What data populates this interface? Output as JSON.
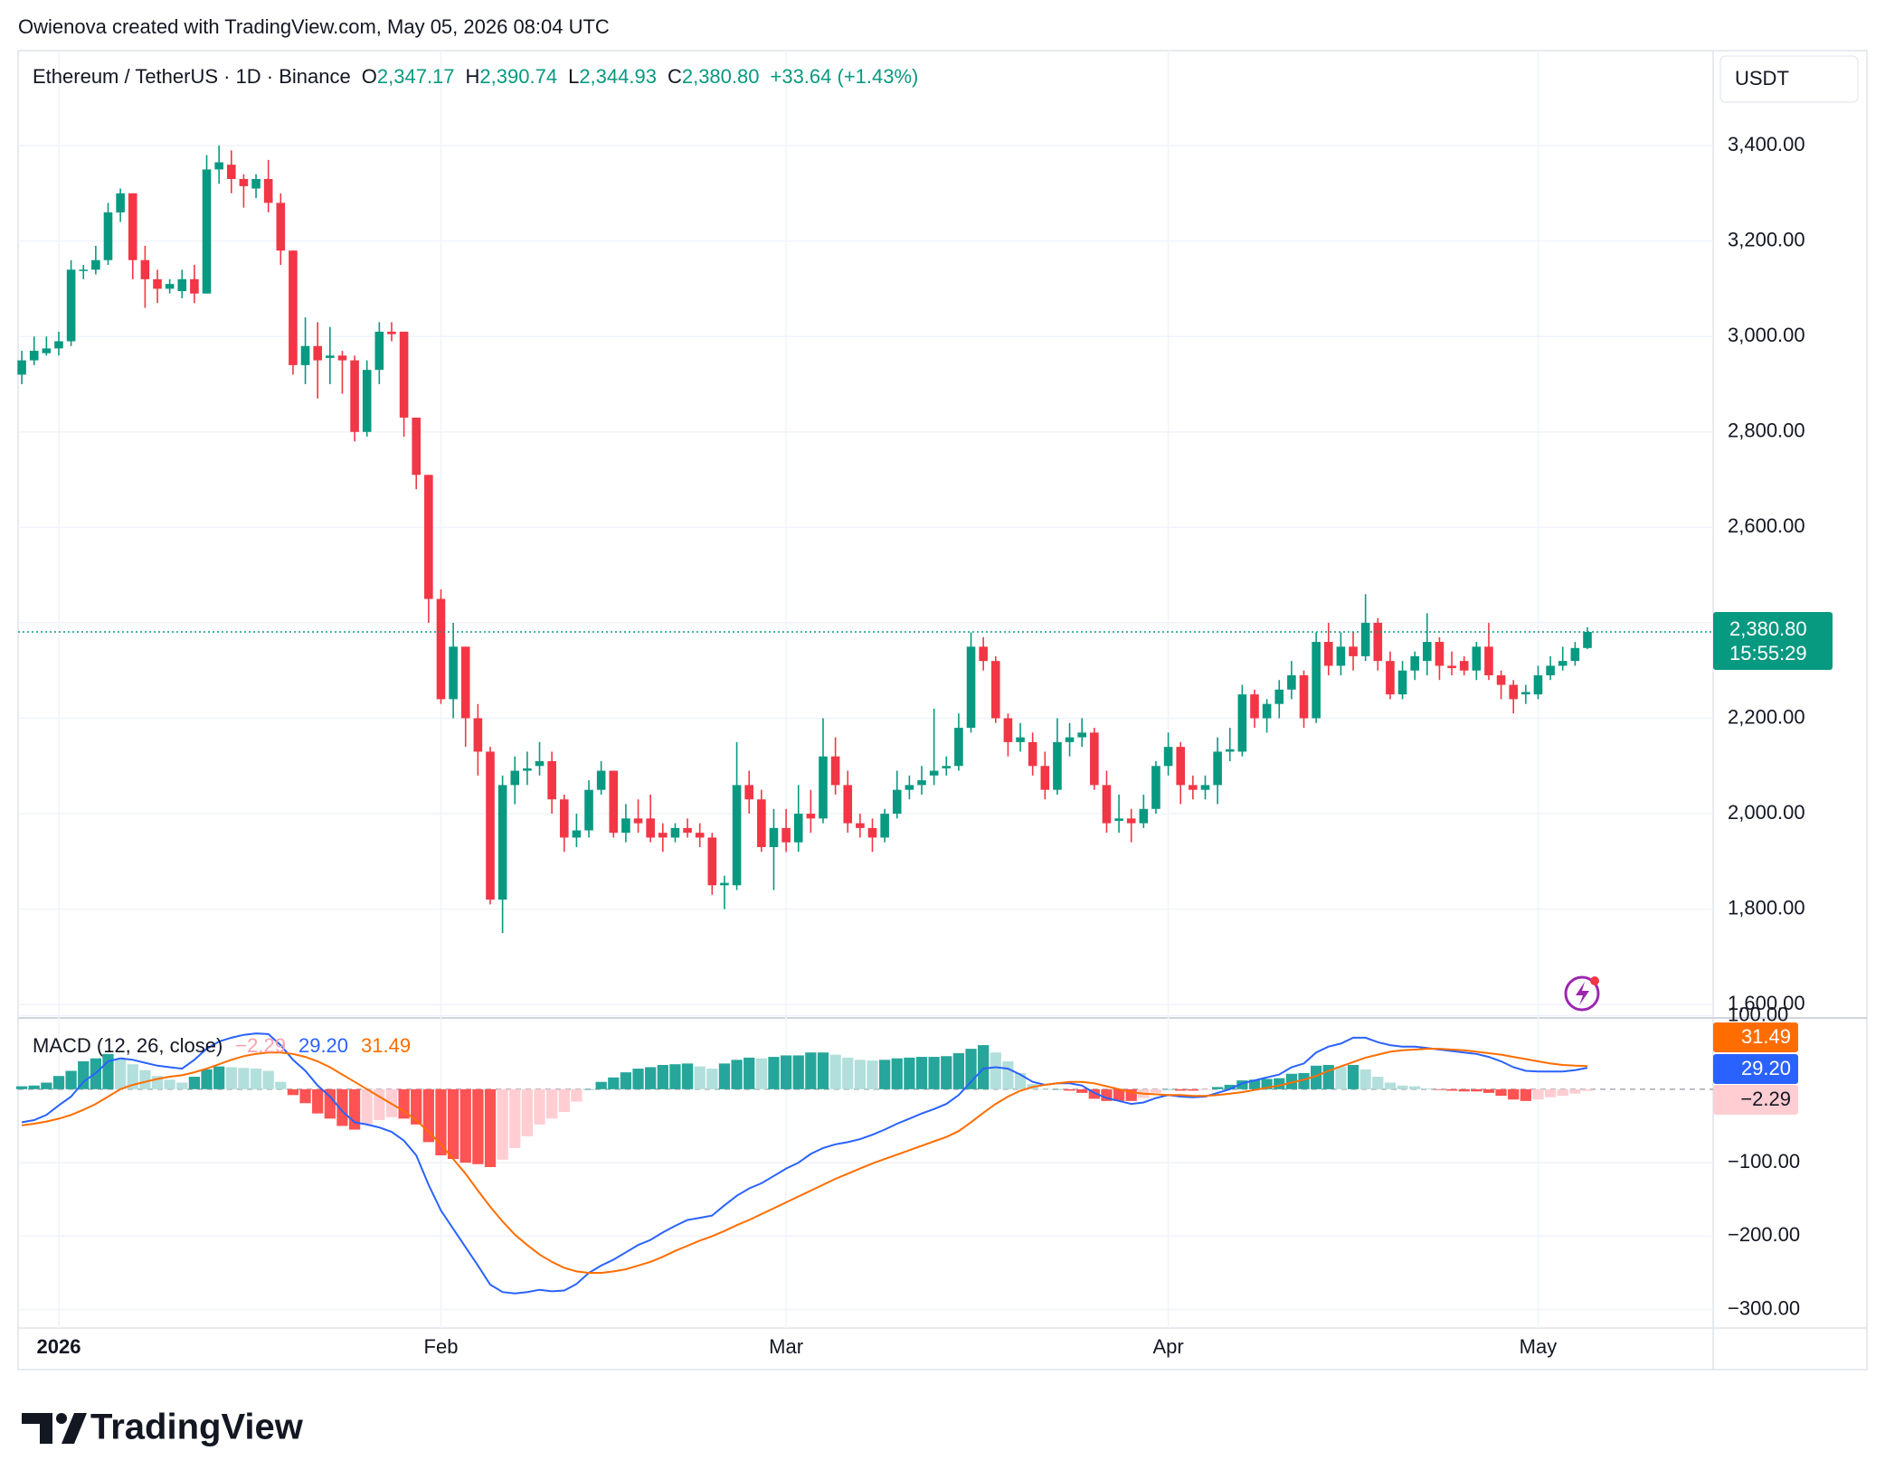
{
  "attribution": "Owienova created with TradingView.com, May 05, 2026 08:04 UTC",
  "logo": "TradingView",
  "chart_data": [
    {
      "type": "candlestick",
      "title": "Ethereum / TetherUS · 1D · Binance",
      "ohlc_header": [
        {
          "label": "O",
          "value": "2,347.17"
        },
        {
          "label": "H",
          "value": "2,390.74"
        },
        {
          "label": "L",
          "value": "2,344.93"
        },
        {
          "label": "C",
          "value": "2,380.80"
        }
      ],
      "change": "+33.64 (+1.43%)",
      "currency": "USDT",
      "last_price_label": "2,380.80",
      "countdown": "15:55:29",
      "up_color": "#089981",
      "down_color": "#f23645",
      "grid": true,
      "xlim": [
        -0.3,
        137.2
      ],
      "xticks": [
        {
          "value": 3,
          "label": "2026"
        },
        {
          "value": 34,
          "label": "Feb"
        },
        {
          "value": 62,
          "label": "Mar"
        },
        {
          "value": 93,
          "label": "Apr"
        },
        {
          "value": 123,
          "label": "May"
        }
      ],
      "ylim": [
        1572,
        3599
      ],
      "yticks": [
        {
          "value": 1600,
          "label": "1,600.00"
        },
        {
          "value": 1800,
          "label": "1,800.00"
        },
        {
          "value": 2000,
          "label": "2,000.00"
        },
        {
          "value": 2200,
          "label": "2,200.00"
        },
        {
          "value": 2400,
          "label": "2,400.00"
        },
        {
          "value": 2600,
          "label": "2,600.00"
        },
        {
          "value": 2800,
          "label": "2,800.00"
        },
        {
          "value": 3000,
          "label": "3,000.00"
        },
        {
          "value": 3200,
          "label": "3,200.00"
        },
        {
          "value": 3400,
          "label": "3,400.00"
        }
      ],
      "open": [
        2920,
        2950,
        2965,
        2975,
        2990,
        3140,
        3140,
        3160,
        3260,
        3300,
        3160,
        3120,
        3100,
        3095,
        3120,
        3090,
        3350,
        3360,
        3330,
        3310,
        3330,
        3280,
        3180,
        2940,
        2980,
        2955,
        2960,
        2950,
        2800,
        2930,
        3010,
        3010,
        2830,
        2710,
        2450,
        2240,
        2350,
        2200,
        2130,
        1820,
        2060,
        2090,
        2100,
        2110,
        2030,
        1950,
        1965,
        2050,
        2090,
        1960,
        1990,
        1990,
        1960,
        1950,
        1970,
        1960,
        1950,
        1850,
        1850,
        2060,
        2030,
        1930,
        1970,
        1940,
        2000,
        1990,
        2120,
        2060,
        1980,
        1970,
        1950,
        2000,
        2050,
        2060,
        2080,
        2095,
        2100,
        2180,
        2350,
        2320,
        2200,
        2150,
        2150,
        2100,
        2050,
        2150,
        2160,
        2170,
        2060,
        1985,
        1990,
        1980,
        2010,
        2100,
        2140,
        2060,
        2050,
        2060,
        2130,
        2130,
        2250,
        2200,
        2230,
        2260,
        2290,
        2200,
        2360,
        2310,
        2350,
        2330,
        2400,
        2320,
        2250,
        2300,
        2320,
        2360,
        2310,
        2320,
        2300,
        2350,
        2290,
        2270,
        2250,
        2250,
        2290,
        2310,
        2320,
        2347.17
      ],
      "high": [
        2970,
        3000,
        3000,
        3010,
        3160,
        3150,
        3190,
        3280,
        3310,
        3300,
        3190,
        3140,
        3120,
        3140,
        3150,
        3380,
        3400,
        3390,
        3340,
        3340,
        3370,
        3300,
        3180,
        3040,
        3030,
        3020,
        2970,
        2960,
        2950,
        3030,
        3030,
        3010,
        2830,
        2710,
        2470,
        2400,
        2350,
        2230,
        2140,
        2080,
        2120,
        2130,
        2150,
        2130,
        2040,
        2000,
        2070,
        2110,
        2090,
        2020,
        2030,
        2040,
        1980,
        1980,
        1990,
        1980,
        1960,
        1870,
        2150,
        2090,
        2050,
        2010,
        2010,
        2060,
        2050,
        2200,
        2160,
        2090,
        2000,
        1990,
        2010,
        2090,
        2080,
        2100,
        2220,
        2120,
        2210,
        2380,
        2370,
        2330,
        2210,
        2190,
        2170,
        2130,
        2200,
        2190,
        2200,
        2180,
        2090,
        2040,
        2010,
        2040,
        2110,
        2170,
        2150,
        2080,
        2080,
        2160,
        2180,
        2270,
        2260,
        2240,
        2280,
        2320,
        2300,
        2380,
        2400,
        2380,
        2380,
        2460,
        2410,
        2340,
        2320,
        2340,
        2420,
        2370,
        2340,
        2330,
        2360,
        2400,
        2300,
        2280,
        2270,
        2310,
        2330,
        2350,
        2360,
        2390.74
      ],
      "low": [
        2900,
        2940,
        2960,
        2960,
        2980,
        3120,
        3130,
        3150,
        3240,
        3120,
        3060,
        3070,
        3090,
        3080,
        3070,
        3090,
        3320,
        3300,
        3270,
        3290,
        3260,
        3150,
        2920,
        2900,
        2870,
        2900,
        2880,
        2780,
        2790,
        2900,
        2990,
        2790,
        2680,
        2400,
        2230,
        2200,
        2140,
        2080,
        1810,
        1750,
        2020,
        2060,
        2080,
        2000,
        1920,
        1930,
        1950,
        2040,
        1950,
        1940,
        1960,
        1940,
        1920,
        1940,
        1950,
        1930,
        1830,
        1800,
        1840,
        2000,
        1920,
        1840,
        1920,
        1920,
        1960,
        1980,
        2040,
        1960,
        1950,
        1920,
        1940,
        1990,
        2030,
        2040,
        2060,
        2080,
        2090,
        2170,
        2300,
        2190,
        2120,
        2130,
        2080,
        2030,
        2040,
        2120,
        2140,
        2050,
        1960,
        1960,
        1940,
        1970,
        2000,
        2080,
        2020,
        2030,
        2030,
        2020,
        2110,
        2120,
        2180,
        2170,
        2200,
        2240,
        2180,
        2190,
        2290,
        2290,
        2300,
        2320,
        2300,
        2240,
        2240,
        2280,
        2290,
        2280,
        2290,
        2290,
        2280,
        2280,
        2240,
        2210,
        2230,
        2240,
        2280,
        2300,
        2310,
        2344.93
      ],
      "close": [
        2950,
        2970,
        2975,
        2990,
        3140,
        3140,
        3160,
        3260,
        3300,
        3160,
        3120,
        3100,
        3110,
        3120,
        3090,
        3350,
        3365,
        3330,
        3315,
        3330,
        3280,
        3180,
        2940,
        2980,
        2950,
        2960,
        2950,
        2800,
        2930,
        3010,
        3005,
        2830,
        2710,
        2450,
        2240,
        2350,
        2200,
        2130,
        1820,
        2060,
        2090,
        2095,
        2110,
        2030,
        1950,
        1965,
        2050,
        2090,
        1960,
        1990,
        1980,
        1950,
        1950,
        1970,
        1960,
        1950,
        1850,
        1855,
        2060,
        2030,
        1930,
        1970,
        1940,
        2000,
        1990,
        2120,
        2060,
        1980,
        1970,
        1950,
        2000,
        2050,
        2060,
        2070,
        2090,
        2100,
        2180,
        2350,
        2320,
        2200,
        2150,
        2160,
        2100,
        2050,
        2150,
        2160,
        2170,
        2060,
        1980,
        1990,
        1980,
        2010,
        2100,
        2140,
        2060,
        2050,
        2060,
        2130,
        2135,
        2250,
        2200,
        2230,
        2260,
        2290,
        2200,
        2360,
        2310,
        2350,
        2330,
        2400,
        2320,
        2250,
        2300,
        2330,
        2360,
        2310,
        2305,
        2300,
        2350,
        2290,
        2270,
        2240,
        2255,
        2290,
        2310,
        2320,
        2347.17,
        2380.8
      ]
    },
    {
      "type": "macd",
      "label": "MACD (12, 26, close)",
      "ylim": [
        -325,
        97
      ],
      "yticks": [
        {
          "value": 100,
          "label": "100.00"
        },
        {
          "value": -100,
          "label": "−100.00"
        },
        {
          "value": -200,
          "label": "−200.00"
        },
        {
          "value": -300,
          "label": "−300.00"
        }
      ],
      "histogram": {
        "colors": {
          "rising_above": "#26a69a",
          "falling_above": "#b2dfdb",
          "falling_below": "#ff5252",
          "rising_below": "#ffcdd2"
        },
        "label_color": "#f7a1ab",
        "last_value_label": "−2.29",
        "values": [
          4,
          5,
          9,
          18,
          25,
          38,
          42,
          48,
          42,
          34,
          26,
          18,
          13,
          9,
          17,
          27,
          31,
          30,
          29,
          28,
          25,
          10,
          -8,
          -19,
          -33,
          -40,
          -50,
          -55,
          -48,
          -42,
          -38,
          -40,
          -48,
          -72,
          -90,
          -95,
          -100,
          -102,
          -106,
          -96,
          -80,
          -64,
          -48,
          -40,
          -31,
          -17,
          0,
          10,
          16,
          23,
          28,
          30,
          33,
          34,
          35,
          31,
          28,
          35,
          40,
          43,
          42,
          44,
          46,
          46,
          50,
          50,
          47,
          43,
          40,
          39,
          40,
          42,
          43,
          44,
          44,
          45,
          49,
          55,
          60,
          50,
          38,
          22,
          7,
          0,
          0,
          -2,
          -5,
          -13,
          -16,
          -16,
          -16,
          -12,
          -5,
          0,
          -2,
          -2,
          -1,
          3,
          6,
          12,
          13,
          14,
          15,
          21,
          22,
          32,
          33,
          31,
          33,
          27,
          17,
          9,
          5,
          4,
          1,
          -1,
          -2,
          -3,
          -3,
          -5,
          -9,
          -14,
          -16,
          -14,
          -11,
          -9,
          -6,
          -2.29
        ]
      },
      "series": [
        {
          "color": "#2962ff",
          "last_value_label": "29.20",
          "values": [
            -45,
            -42,
            -35,
            -22,
            -10,
            10,
            22,
            38,
            42,
            40,
            36,
            32,
            30,
            28,
            40,
            55,
            65,
            70,
            74,
            76,
            75,
            60,
            40,
            25,
            5,
            -10,
            -30,
            -45,
            -48,
            -52,
            -58,
            -70,
            -90,
            -130,
            -165,
            -190,
            -215,
            -240,
            -266,
            -276,
            -278,
            -276,
            -273,
            -275,
            -274,
            -265,
            -250,
            -240,
            -232,
            -222,
            -212,
            -205,
            -195,
            -186,
            -178,
            -175,
            -172,
            -158,
            -145,
            -135,
            -128,
            -118,
            -108,
            -100,
            -88,
            -80,
            -75,
            -72,
            -68,
            -62,
            -55,
            -47,
            -40,
            -33,
            -27,
            -20,
            -8,
            10,
            28,
            30,
            28,
            20,
            10,
            6,
            8,
            8,
            5,
            -5,
            -12,
            -16,
            -20,
            -18,
            -12,
            -8,
            -10,
            -11,
            -10,
            -5,
            0,
            8,
            12,
            16,
            20,
            30,
            35,
            50,
            58,
            62,
            70,
            70,
            64,
            60,
            58,
            58,
            56,
            54,
            52,
            50,
            48,
            44,
            38,
            30,
            25,
            24,
            24,
            24,
            26,
            29.2
          ]
        },
        {
          "color": "#ff6d00",
          "last_value_label": "31.49",
          "values": [
            -49,
            -47,
            -44,
            -40,
            -35,
            -28,
            -20,
            -10,
            0,
            6,
            10,
            14,
            17,
            19,
            23,
            28,
            34,
            40,
            45,
            48,
            50,
            50,
            48,
            44,
            38,
            30,
            20,
            10,
            0,
            -10,
            -20,
            -30,
            -42,
            -58,
            -75,
            -95,
            -115,
            -138,
            -160,
            -180,
            -198,
            -212,
            -225,
            -235,
            -243,
            -248,
            -250,
            -250,
            -248,
            -245,
            -240,
            -235,
            -228,
            -220,
            -213,
            -206,
            -200,
            -193,
            -185,
            -178,
            -170,
            -162,
            -154,
            -146,
            -138,
            -130,
            -122,
            -115,
            -108,
            -101,
            -95,
            -89,
            -83,
            -77,
            -71,
            -65,
            -57,
            -45,
            -32,
            -20,
            -10,
            -2,
            3,
            6,
            8,
            10,
            10,
            8,
            4,
            0,
            -4,
            -6,
            -7,
            -8,
            -8,
            -9,
            -9,
            -8,
            -6,
            -4,
            -1,
            2,
            5,
            9,
            13,
            18,
            25,
            31,
            37,
            43,
            47,
            51,
            53,
            54,
            55,
            55,
            54,
            53,
            51,
            49,
            47,
            44,
            41,
            38,
            35,
            33,
            32,
            31.49
          ]
        }
      ]
    }
  ]
}
